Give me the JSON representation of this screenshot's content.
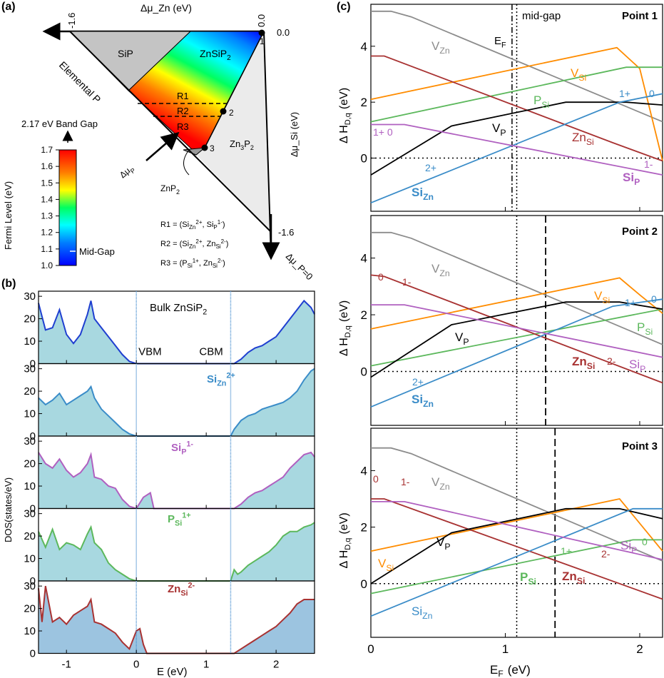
{
  "colors": {
    "VZn": "#8c8c8c",
    "VSi": "#ff8c00",
    "PSi": "#5cb85c",
    "ZnSi": "#a83232",
    "VP": "#000000",
    "SiZn": "#3a8cc8",
    "SiP": "#b060c0",
    "dos_bulk": "#1f3fd0",
    "dos_SiZn": "#3a8cc8",
    "dos_SiP": "#b060c0",
    "dos_PSi": "#5cb85c",
    "dos_ZnSi": "#a83232",
    "dos_fill": "#a8d8e0",
    "dos_fill_last": "#9cc4e0",
    "vline": "#4a90d0"
  },
  "panel_a": {
    "label": "(a)",
    "top_axis_label": "Δμ_Zn (eV)",
    "right_axis_label": "Δμ_Si (eV)",
    "bottom_axis_label": "Δμ_P=0",
    "tick_left_top": "-1.6",
    "tick_top_right_rot": "0.0",
    "tick_top_right": "0.0",
    "tick_bottom": "-1.6",
    "elemental_p": "Elemental P",
    "region_sip": "SiP",
    "region_znsip2_main": "ZnSiP",
    "region_znsip2_sub": "2",
    "region_zn3p2_main": "Zn",
    "region_zn3p2_sub1": "3",
    "region_zn3p2_p": "P",
    "region_zn3p2_sub2": "2",
    "r1": "R1",
    "r2": "R2",
    "r3": "R3",
    "point1": "1",
    "point2": "2",
    "point3": "3",
    "znp2_main": "ZnP",
    "znp2_sub": "2",
    "dmu_p_main": "Δμ",
    "dmu_p_sub": "P",
    "band_gap": "2.17 eV Band Gap",
    "fermi_axis": "Fermi Level (eV)",
    "cbar_ticks": [
      "1.7",
      "1.6",
      "1.5",
      "1.4",
      "1.3",
      "1.2",
      "1.1",
      "1.0"
    ],
    "mid_gap": "Mid-Gap",
    "defs": [
      {
        "name": "R1",
        "parts": [
          "R1 = (Si",
          "Zn",
          "2+",
          ", Si",
          "P",
          "1-",
          ")"
        ]
      },
      {
        "name": "R2",
        "parts": [
          "R2 = (Si",
          "Zn",
          "2+",
          ", Zn",
          "Si",
          "2-",
          ")"
        ]
      },
      {
        "name": "R3",
        "parts": [
          "R3 = (P",
          "Si",
          "1+",
          ", Zn",
          "Si",
          "2-",
          ")"
        ]
      }
    ]
  },
  "panel_b": {
    "label": "(b)",
    "xlabel": "E (eV)",
    "ylabel": "DOS(states/eV)",
    "xticks": [
      "-1",
      "0",
      "1",
      "2"
    ],
    "yticks": [
      "0",
      "10",
      "20",
      "30"
    ],
    "vbm": "VBM",
    "cbm": "CBM",
    "titles": [
      {
        "main": "Bulk ZnSiP",
        "sub": "2",
        "sup": ""
      },
      {
        "main": "Si",
        "sub": "Zn",
        "sup": "2+"
      },
      {
        "main": "Si",
        "sub": "P",
        "sup": "1-"
      },
      {
        "main": "P",
        "sub": "Si",
        "sup": "1+"
      },
      {
        "main": "Zn",
        "sub": "Si",
        "sup": "2-"
      }
    ]
  },
  "panel_c": {
    "label": "(c)",
    "xlabel_main": "E",
    "xlabel_sub": "F",
    "xlabel_unit": "(eV)",
    "ylabel_main": "Δ H",
    "ylabel_sub": "D,q",
    "ylabel_unit": "(eV)",
    "xticks": [
      "0",
      "1",
      "2"
    ],
    "yticks": [
      "0",
      "2",
      "4"
    ],
    "ef_main": "E",
    "ef_sub": "F",
    "midgap": "mid-gap",
    "points": [
      "Point 1",
      "Point 2",
      "Point 3"
    ]
  },
  "chart_data": [
    {
      "type": "line",
      "title": "Point 1",
      "xlabel": "E_F (eV)",
      "ylabel": "ΔH_D,q (eV)",
      "xlim": [
        0,
        2.17
      ],
      "ylim": [
        -1.9,
        5.5
      ],
      "vlines": {
        "E_F": 1.05,
        "mid_gap": 1.085
      },
      "series": [
        {
          "name": "V_Zn",
          "x": [
            0,
            0.15,
            0.3,
            2.17
          ],
          "y": [
            5.25,
            5.25,
            5.05,
            1.3
          ]
        },
        {
          "name": "V_Si",
          "x": [
            0,
            1.83,
            2.0,
            2.17
          ],
          "y": [
            2.1,
            3.95,
            3.2,
            -0.1
          ]
        },
        {
          "name": "P_Si",
          "x": [
            0,
            1.9,
            2.17
          ],
          "y": [
            1.3,
            3.25,
            3.25
          ]
        },
        {
          "name": "Zn_Si",
          "x": [
            0,
            0.1,
            1.8,
            2.17
          ],
          "y": [
            3.65,
            3.65,
            0.55,
            -0.1
          ]
        },
        {
          "name": "V_P",
          "x": [
            0,
            0.6,
            1.45,
            1.9,
            2.17
          ],
          "y": [
            -0.6,
            1.15,
            2.0,
            2.0,
            1.9
          ]
        },
        {
          "name": "Si_Zn",
          "x": [
            0,
            1.85,
            2.17
          ],
          "y": [
            -1.6,
            2.0,
            2.3
          ]
        },
        {
          "name": "Si_P",
          "x": [
            0,
            0.25,
            2.17
          ],
          "y": [
            1.2,
            1.2,
            -0.6
          ]
        }
      ],
      "labels": {
        "V_Zn": "V",
        "V_Si": "V",
        "P_Si": "P",
        "Zn_Si": "Zn",
        "V_P": "V",
        "Si_Zn": "Si",
        "Si_P": "Si",
        "q_1plus_0": "1+  0",
        "q_SiZn_1plus": "1+",
        "q_SiZn_0": "0",
        "q_SiZn_2plus": "2+",
        "q_SiP_1minus": "1-"
      }
    },
    {
      "type": "line",
      "title": "Point 2",
      "xlabel": "E_F (eV)",
      "ylabel": "ΔH_D,q (eV)",
      "xlim": [
        0,
        2.17
      ],
      "ylim": [
        -1.9,
        5.5
      ],
      "vlines": {
        "E_F": 1.085,
        "mid_gap": 1.3
      },
      "series": [
        {
          "name": "V_Zn",
          "x": [
            0,
            0.15,
            0.3,
            2.17
          ],
          "y": [
            4.9,
            4.9,
            4.7,
            0.95
          ]
        },
        {
          "name": "V_Si",
          "x": [
            0,
            1.85,
            2.0,
            2.17
          ],
          "y": [
            1.5,
            3.3,
            2.7,
            2.05
          ]
        },
        {
          "name": "P_Si",
          "x": [
            0,
            2.17
          ],
          "y": [
            0.2,
            2.2
          ]
        },
        {
          "name": "Zn_Si",
          "x": [
            0,
            0.1,
            2.17
          ],
          "y": [
            3.4,
            3.35,
            -0.4
          ]
        },
        {
          "name": "V_P",
          "x": [
            0,
            0.6,
            1.45,
            1.85,
            2.17
          ],
          "y": [
            -0.2,
            1.65,
            2.45,
            2.45,
            2.2
          ]
        },
        {
          "name": "Si_Zn",
          "x": [
            0,
            1.8,
            2.17
          ],
          "y": [
            -1.25,
            2.3,
            2.55
          ]
        },
        {
          "name": "Si_P",
          "x": [
            0,
            0.25,
            2.17
          ],
          "y": [
            2.35,
            2.35,
            0.5
          ]
        }
      ],
      "labels": {
        "V_Zn": "V",
        "V_Si": "V",
        "P_Si": "P",
        "Zn_Si": "Zn",
        "V_P": "V",
        "Si_Zn": "Si",
        "Si_P": "Si",
        "q_ZnSi_0": "0",
        "q_ZnSi_1minus": "1-",
        "q_ZnSi_2minus": "2-",
        "q_SiZn_1plus": "1+",
        "q_SiZn_0": "0",
        "q_SiZn_2plus": "2+"
      }
    },
    {
      "type": "line",
      "title": "Point 3",
      "xlabel": "E_F (eV)",
      "ylabel": "ΔH_D,q (eV)",
      "xlim": [
        0,
        2.17
      ],
      "ylim": [
        -1.9,
        5.5
      ],
      "vlines": {
        "E_F": 1.085,
        "mid_gap": 1.37
      },
      "series": [
        {
          "name": "V_Zn",
          "x": [
            0,
            0.15,
            0.3,
            2.17
          ],
          "y": [
            4.8,
            4.8,
            4.6,
            0.8
          ]
        },
        {
          "name": "V_Si",
          "x": [
            0,
            1.85,
            2.17
          ],
          "y": [
            1.15,
            3.0,
            1.15
          ]
        },
        {
          "name": "P_Si",
          "x": [
            0,
            1.95,
            2.17
          ],
          "y": [
            -0.35,
            1.55,
            1.55
          ]
        },
        {
          "name": "Zn_Si",
          "x": [
            0,
            0.1,
            2.17
          ],
          "y": [
            3.0,
            3.0,
            -0.55
          ]
        },
        {
          "name": "V_P",
          "x": [
            0,
            0.6,
            1.45,
            1.85,
            2.17
          ],
          "y": [
            0,
            1.8,
            2.65,
            2.65,
            2.3
          ]
        },
        {
          "name": "Si_Zn",
          "x": [
            0,
            1.95,
            2.17
          ],
          "y": [
            -1.15,
            2.65,
            2.65
          ]
        },
        {
          "name": "Si_P",
          "x": [
            0,
            0.25,
            2.17
          ],
          "y": [
            2.9,
            2.9,
            0.85
          ]
        }
      ],
      "labels": {
        "V_Zn": "V",
        "V_Si": "V",
        "P_Si": "P",
        "Zn_Si": "Zn",
        "V_P": "V",
        "Si_Zn": "Si",
        "Si_P": "Si",
        "q_ZnSi_0": "0",
        "q_ZnSi_1minus": "1-",
        "q_ZnSi_2minus": "2-",
        "q_PSi_1plus": "1+",
        "q_PSi_0": "0"
      }
    },
    {
      "type": "area",
      "title": "DOS",
      "xlabel": "E (eV)",
      "ylabel": "DOS(states/eV)",
      "xlim": [
        -1.4,
        2.55
      ],
      "ylim": [
        0,
        31
      ],
      "vbm": 0,
      "cbm": 1.35,
      "series": [
        {
          "name": "Bulk ZnSiP2",
          "x": [
            -1.4,
            -1.3,
            -1.2,
            -1.1,
            -1.0,
            -0.9,
            -0.8,
            -0.7,
            -0.65,
            -0.6,
            -0.5,
            -0.4,
            -0.3,
            -0.2,
            -0.1,
            0,
            1.4,
            1.5,
            1.6,
            1.7,
            1.8,
            1.9,
            2.0,
            2.1,
            2.2,
            2.3,
            2.4,
            2.5,
            2.55
          ],
          "y": [
            27,
            15,
            16,
            24,
            13,
            9,
            13,
            22,
            28,
            20,
            16,
            12,
            8,
            4,
            1,
            0,
            0,
            2,
            5,
            7,
            8,
            10,
            12,
            16,
            20,
            24,
            28,
            25,
            22
          ]
        },
        {
          "name": "Si_Zn 2+",
          "x": [
            -1.4,
            -1.3,
            -1.2,
            -1.1,
            -1.0,
            -0.9,
            -0.8,
            -0.7,
            -0.65,
            -0.6,
            -0.5,
            -0.4,
            -0.3,
            -0.2,
            -0.1,
            0,
            1.35,
            1.4,
            1.5,
            1.6,
            1.7,
            1.8,
            1.9,
            2.0,
            2.1,
            2.2,
            2.3,
            2.4,
            2.5,
            2.55
          ],
          "y": [
            17,
            14,
            16,
            19,
            14,
            16,
            18,
            20,
            22,
            17,
            12,
            9,
            6,
            3,
            1,
            0,
            0,
            3,
            7,
            9,
            10,
            12,
            13,
            14,
            15,
            17,
            20,
            25,
            29,
            30
          ]
        },
        {
          "name": "Si_P 1-",
          "x": [
            -1.4,
            -1.3,
            -1.2,
            -1.1,
            -1.0,
            -0.9,
            -0.8,
            -0.7,
            -0.65,
            -0.6,
            -0.5,
            -0.4,
            -0.3,
            -0.2,
            -0.1,
            0,
            0.1,
            0.2,
            0.25,
            1.4,
            1.5,
            1.6,
            1.7,
            1.8,
            1.9,
            2.0,
            2.1,
            2.2,
            2.3,
            2.4,
            2.5,
            2.55
          ],
          "y": [
            25,
            20,
            18,
            22,
            17,
            14,
            16,
            20,
            24,
            14,
            13,
            10,
            9,
            4,
            1,
            0,
            5,
            7,
            0,
            0,
            2,
            5,
            7,
            8,
            10,
            12,
            14,
            18,
            21,
            24,
            25,
            23
          ]
        },
        {
          "name": "P_Si 1+",
          "x": [
            -1.4,
            -1.3,
            -1.2,
            -1.1,
            -1.0,
            -0.9,
            -0.8,
            -0.7,
            -0.65,
            -0.6,
            -0.5,
            -0.4,
            -0.3,
            -0.2,
            -0.1,
            0,
            1.35,
            1.4,
            1.45,
            1.5,
            1.6,
            1.7,
            1.8,
            1.9,
            2.0,
            2.1,
            2.2,
            2.3,
            2.4,
            2.5,
            2.55
          ],
          "y": [
            22,
            15,
            23,
            14,
            17,
            16,
            14,
            21,
            24,
            17,
            14,
            8,
            5,
            3,
            1,
            0,
            0,
            5,
            3,
            4,
            7,
            9,
            11,
            13,
            16,
            20,
            22,
            22,
            24,
            25,
            26
          ]
        },
        {
          "name": "Zn_Si 2-",
          "x": [
            -1.4,
            -1.35,
            -1.3,
            -1.2,
            -1.1,
            -1.0,
            -0.9,
            -0.8,
            -0.7,
            -0.65,
            -0.6,
            -0.5,
            -0.4,
            -0.3,
            -0.2,
            -0.1,
            0,
            0.05,
            0.1,
            0.15,
            1.4,
            1.5,
            1.6,
            1.7,
            1.8,
            1.9,
            2.0,
            2.1,
            2.2,
            2.3,
            2.4,
            2.5,
            2.55
          ],
          "y": [
            29,
            14,
            30,
            14,
            16,
            13,
            17,
            19,
            21,
            24,
            14,
            13,
            11,
            9,
            5,
            2,
            10,
            11,
            4,
            0,
            0,
            2,
            4,
            6,
            8,
            10,
            12,
            15,
            18,
            22,
            24,
            24,
            24
          ]
        }
      ]
    }
  ]
}
